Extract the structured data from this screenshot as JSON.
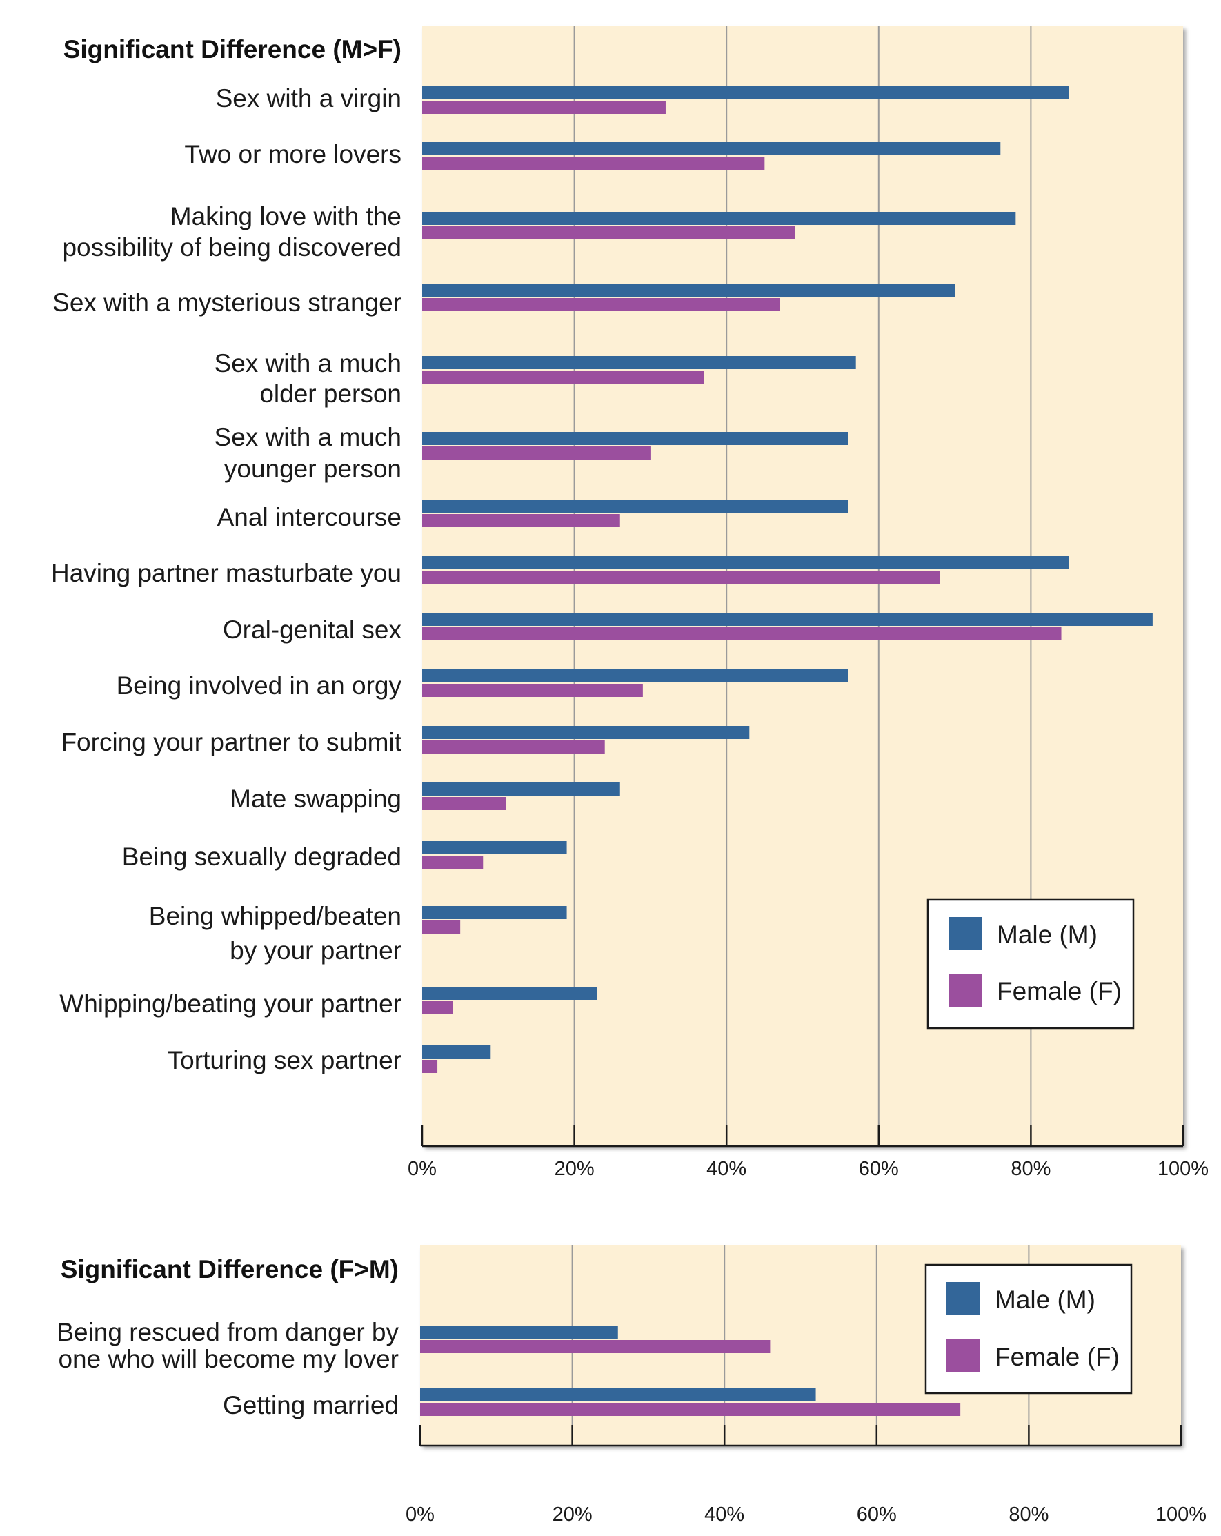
{
  "colors": {
    "male": "#336699",
    "female": "#9b4f9e",
    "plot_bg": "#fdf0d5",
    "grid": "#9a9a9a"
  },
  "chart_data": [
    {
      "type": "bar",
      "orientation": "horizontal",
      "heading": "Significant Difference (M>F)",
      "categories": [
        [
          "Sex with a virgin"
        ],
        [
          "Two or more lovers"
        ],
        [
          "Making love with the",
          "possibility of being discovered"
        ],
        [
          "Sex with a mysterious stranger"
        ],
        [
          "Sex with a much",
          "older person"
        ],
        [
          "Sex with a much",
          "younger person"
        ],
        [
          "Anal intercourse"
        ],
        [
          "Having partner masturbate you"
        ],
        [
          "Oral-genital sex"
        ],
        [
          "Being involved in an orgy"
        ],
        [
          "Forcing your partner to submit"
        ],
        [
          "Mate swapping"
        ],
        [
          "Being sexually degraded"
        ],
        [
          "Being whipped/beaten",
          "by your partner"
        ],
        [
          "Whipping/beating your partner"
        ],
        [
          "Torturing sex partner"
        ]
      ],
      "series": [
        {
          "name": "Male (M)",
          "values": [
            85,
            76,
            78,
            70,
            57,
            56,
            56,
            85,
            96,
            56,
            43,
            26,
            19,
            19,
            23,
            9
          ]
        },
        {
          "name": "Female (F)",
          "values": [
            32,
            45,
            49,
            47,
            37,
            30,
            26,
            68,
            84,
            29,
            24,
            11,
            8,
            5,
            4,
            2
          ]
        }
      ],
      "xlim": [
        0,
        100
      ],
      "ticks": [
        "0%",
        "20%",
        "40%",
        "60%",
        "80%",
        "100%"
      ],
      "grid": true,
      "legend": "lower-right"
    },
    {
      "type": "bar",
      "orientation": "horizontal",
      "heading": "Significant Difference (F>M)",
      "categories": [
        [
          "Being rescued from danger by",
          "one who will become my lover"
        ],
        [
          "Getting married"
        ]
      ],
      "series": [
        {
          "name": "Male (M)",
          "values": [
            26,
            52
          ]
        },
        {
          "name": "Female (F)",
          "values": [
            46,
            71
          ]
        }
      ],
      "xlim": [
        0,
        100
      ],
      "ticks": [
        "0%",
        "20%",
        "40%",
        "60%",
        "80%",
        "100%"
      ],
      "grid": true,
      "legend": "top-right"
    }
  ]
}
